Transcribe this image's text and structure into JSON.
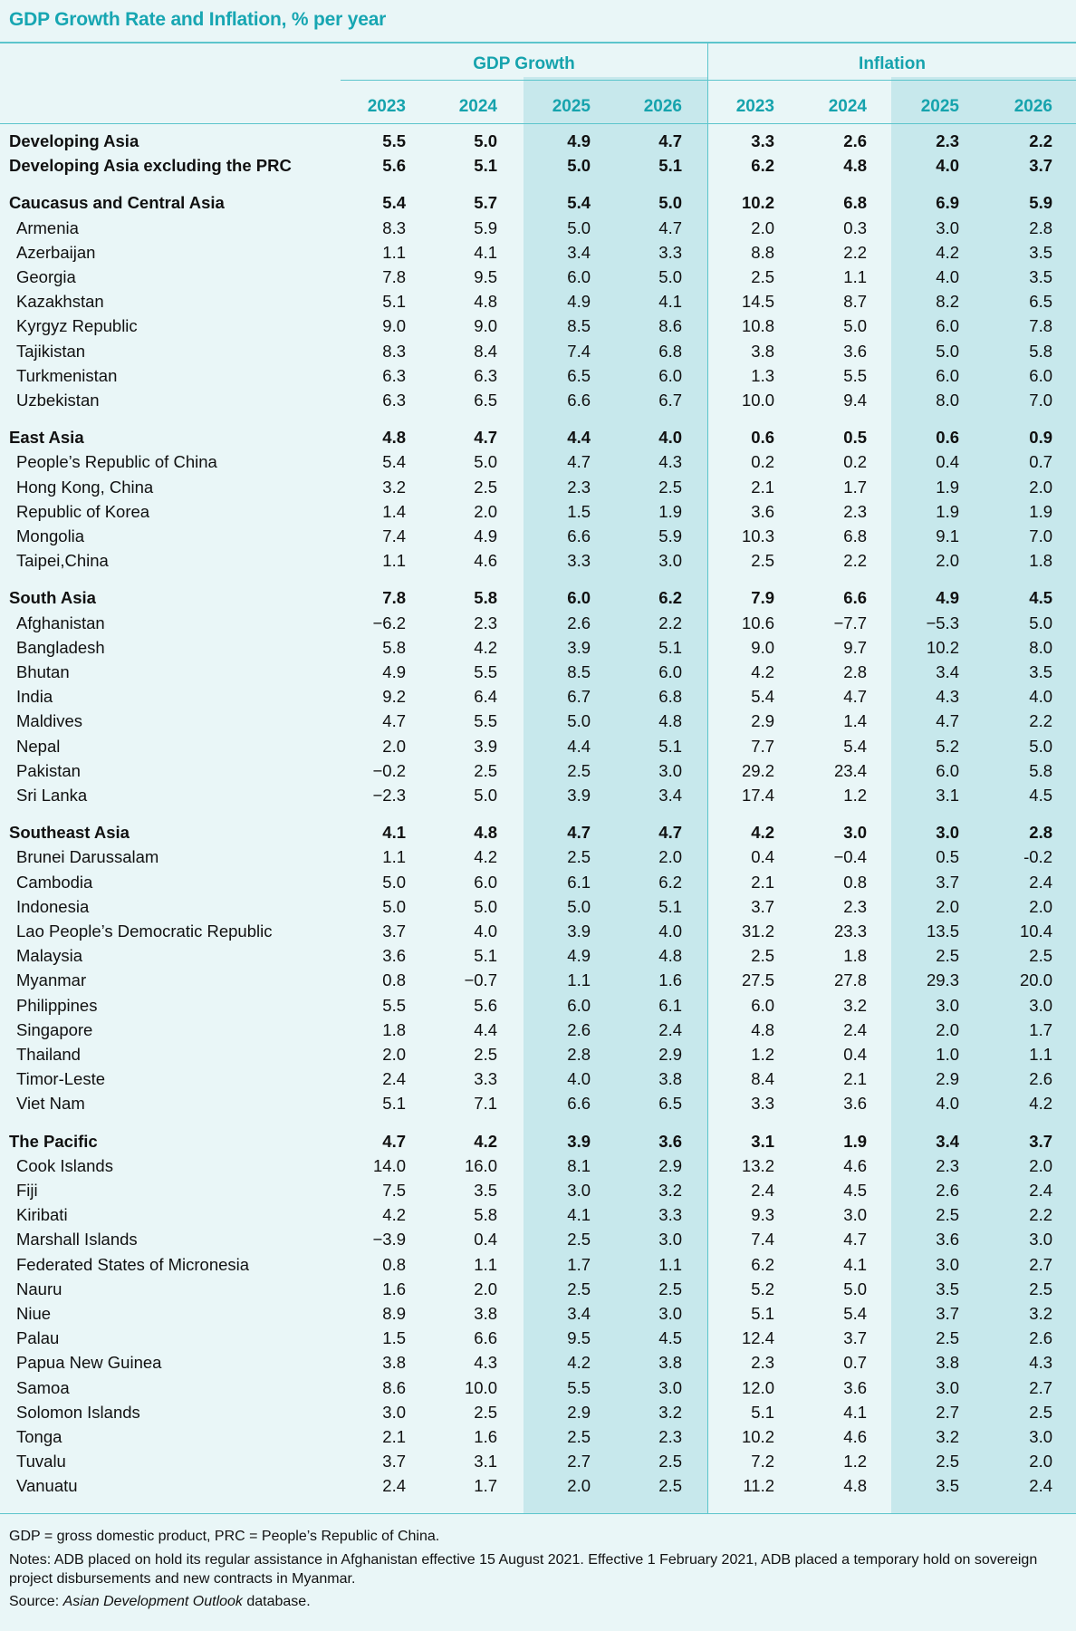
{
  "title": "GDP Growth Rate and Inflation, % per year",
  "header": {
    "gdp_label": "GDP Growth",
    "inflation_label": "Inflation",
    "years": [
      "2023",
      "2024",
      "2025",
      "2026",
      "2023",
      "2024",
      "2025",
      "2026"
    ]
  },
  "rows": [
    {
      "label": "Developing Asia",
      "bold": true,
      "values": [
        "5.5",
        "5.0",
        "4.9",
        "4.7",
        "3.3",
        "2.6",
        "2.3",
        "2.2"
      ]
    },
    {
      "label": "Developing Asia excluding the PRC",
      "bold": true,
      "values": [
        "5.6",
        "5.1",
        "5.0",
        "5.1",
        "6.2",
        "4.8",
        "4.0",
        "3.7"
      ]
    },
    {
      "label": "Caucasus and Central Asia",
      "bold": true,
      "values": [
        "5.4",
        "5.7",
        "5.4",
        "5.0",
        "10.2",
        "6.8",
        "6.9",
        "5.9"
      ]
    },
    {
      "label": "Armenia",
      "values": [
        "8.3",
        "5.9",
        "5.0",
        "4.7",
        "2.0",
        "0.3",
        "3.0",
        "2.8"
      ]
    },
    {
      "label": "Azerbaijan",
      "values": [
        "1.1",
        "4.1",
        "3.4",
        "3.3",
        "8.8",
        "2.2",
        "4.2",
        "3.5"
      ]
    },
    {
      "label": "Georgia",
      "values": [
        "7.8",
        "9.5",
        "6.0",
        "5.0",
        "2.5",
        "1.1",
        "4.0",
        "3.5"
      ]
    },
    {
      "label": "Kazakhstan",
      "values": [
        "5.1",
        "4.8",
        "4.9",
        "4.1",
        "14.5",
        "8.7",
        "8.2",
        "6.5"
      ]
    },
    {
      "label": "Kyrgyz Republic",
      "values": [
        "9.0",
        "9.0",
        "8.5",
        "8.6",
        "10.8",
        "5.0",
        "6.0",
        "7.8"
      ]
    },
    {
      "label": "Tajikistan",
      "values": [
        "8.3",
        "8.4",
        "7.4",
        "6.8",
        "3.8",
        "3.6",
        "5.0",
        "5.8"
      ]
    },
    {
      "label": "Turkmenistan",
      "values": [
        "6.3",
        "6.3",
        "6.5",
        "6.0",
        "1.3",
        "5.5",
        "6.0",
        "6.0"
      ]
    },
    {
      "label": "Uzbekistan",
      "values": [
        "6.3",
        "6.5",
        "6.6",
        "6.7",
        "10.0",
        "9.4",
        "8.0",
        "7.0"
      ]
    },
    {
      "label": "East Asia",
      "bold": true,
      "values": [
        "4.8",
        "4.7",
        "4.4",
        "4.0",
        "0.6",
        "0.5",
        "0.6",
        "0.9"
      ]
    },
    {
      "label": "People’s Republic of China",
      "values": [
        "5.4",
        "5.0",
        "4.7",
        "4.3",
        "0.2",
        "0.2",
        "0.4",
        "0.7"
      ]
    },
    {
      "label": "Hong Kong, China",
      "values": [
        "3.2",
        "2.5",
        "2.3",
        "2.5",
        "2.1",
        "1.7",
        "1.9",
        "2.0"
      ]
    },
    {
      "label": "Republic of Korea",
      "values": [
        "1.4",
        "2.0",
        "1.5",
        "1.9",
        "3.6",
        "2.3",
        "1.9",
        "1.9"
      ]
    },
    {
      "label": "Mongolia",
      "values": [
        "7.4",
        "4.9",
        "6.6",
        "5.9",
        "10.3",
        "6.8",
        "9.1",
        "7.0"
      ]
    },
    {
      "label": "Taipei,China",
      "values": [
        "1.1",
        "4.6",
        "3.3",
        "3.0",
        "2.5",
        "2.2",
        "2.0",
        "1.8"
      ]
    },
    {
      "label": "South Asia",
      "bold": true,
      "values": [
        "7.8",
        "5.8",
        "6.0",
        "6.2",
        "7.9",
        "6.6",
        "4.9",
        "4.5"
      ]
    },
    {
      "label": "Afghanistan",
      "values": [
        "−6.2",
        "2.3",
        "2.6",
        "2.2",
        "10.6",
        "−7.7",
        "−5.3",
        "5.0"
      ]
    },
    {
      "label": "Bangladesh",
      "values": [
        "5.8",
        "4.2",
        "3.9",
        "5.1",
        "9.0",
        "9.7",
        "10.2",
        "8.0"
      ]
    },
    {
      "label": "Bhutan",
      "values": [
        "4.9",
        "5.5",
        "8.5",
        "6.0",
        "4.2",
        "2.8",
        "3.4",
        "3.5"
      ]
    },
    {
      "label": "India",
      "values": [
        "9.2",
        "6.4",
        "6.7",
        "6.8",
        "5.4",
        "4.7",
        "4.3",
        "4.0"
      ]
    },
    {
      "label": "Maldives",
      "values": [
        "4.7",
        "5.5",
        "5.0",
        "4.8",
        "2.9",
        "1.4",
        "4.7",
        "2.2"
      ]
    },
    {
      "label": "Nepal",
      "values": [
        "2.0",
        "3.9",
        "4.4",
        "5.1",
        "7.7",
        "5.4",
        "5.2",
        "5.0"
      ]
    },
    {
      "label": "Pakistan",
      "values": [
        "−0.2",
        "2.5",
        "2.5",
        "3.0",
        "29.2",
        "23.4",
        "6.0",
        "5.8"
      ]
    },
    {
      "label": "Sri Lanka",
      "values": [
        "−2.3",
        "5.0",
        "3.9",
        "3.4",
        "17.4",
        "1.2",
        "3.1",
        "4.5"
      ]
    },
    {
      "label": "Southeast Asia",
      "bold": true,
      "values": [
        "4.1",
        "4.8",
        "4.7",
        "4.7",
        "4.2",
        "3.0",
        "3.0",
        "2.8"
      ]
    },
    {
      "label": "Brunei Darussalam",
      "values": [
        "1.1",
        "4.2",
        "2.5",
        "2.0",
        "0.4",
        "−0.4",
        "0.5",
        "-0.2"
      ]
    },
    {
      "label": "Cambodia",
      "values": [
        "5.0",
        "6.0",
        "6.1",
        "6.2",
        "2.1",
        "0.8",
        "3.7",
        "2.4"
      ]
    },
    {
      "label": "Indonesia",
      "values": [
        "5.0",
        "5.0",
        "5.0",
        "5.1",
        "3.7",
        "2.3",
        "2.0",
        "2.0"
      ]
    },
    {
      "label": "Lao People’s Democratic Republic",
      "values": [
        "3.7",
        "4.0",
        "3.9",
        "4.0",
        "31.2",
        "23.3",
        "13.5",
        "10.4"
      ]
    },
    {
      "label": "Malaysia",
      "values": [
        "3.6",
        "5.1",
        "4.9",
        "4.8",
        "2.5",
        "1.8",
        "2.5",
        "2.5"
      ]
    },
    {
      "label": "Myanmar",
      "values": [
        "0.8",
        "−0.7",
        "1.1",
        "1.6",
        "27.5",
        "27.8",
        "29.3",
        "20.0"
      ]
    },
    {
      "label": "Philippines",
      "values": [
        "5.5",
        "5.6",
        "6.0",
        "6.1",
        "6.0",
        "3.2",
        "3.0",
        "3.0"
      ]
    },
    {
      "label": "Singapore",
      "values": [
        "1.8",
        "4.4",
        "2.6",
        "2.4",
        "4.8",
        "2.4",
        "2.0",
        "1.7"
      ]
    },
    {
      "label": "Thailand",
      "values": [
        "2.0",
        "2.5",
        "2.8",
        "2.9",
        "1.2",
        "0.4",
        "1.0",
        "1.1"
      ]
    },
    {
      "label": "Timor-Leste",
      "values": [
        "2.4",
        "3.3",
        "4.0",
        "3.8",
        "8.4",
        "2.1",
        "2.9",
        "2.6"
      ]
    },
    {
      "label": "Viet Nam",
      "values": [
        "5.1",
        "7.1",
        "6.6",
        "6.5",
        "3.3",
        "3.6",
        "4.0",
        "4.2"
      ]
    },
    {
      "label": "The Pacific",
      "bold": true,
      "values": [
        "4.7",
        "4.2",
        "3.9",
        "3.6",
        "3.1",
        "1.9",
        "3.4",
        "3.7"
      ]
    },
    {
      "label": "Cook Islands",
      "values": [
        "14.0",
        "16.0",
        "8.1",
        "2.9",
        "13.2",
        "4.6",
        "2.3",
        "2.0"
      ]
    },
    {
      "label": "Fiji",
      "values": [
        "7.5",
        "3.5",
        "3.0",
        "3.2",
        "2.4",
        "4.5",
        "2.6",
        "2.4"
      ]
    },
    {
      "label": "Kiribati",
      "values": [
        "4.2",
        "5.8",
        "4.1",
        "3.3",
        "9.3",
        "3.0",
        "2.5",
        "2.2"
      ]
    },
    {
      "label": "Marshall Islands",
      "values": [
        "−3.9",
        "0.4",
        "2.5",
        "3.0",
        "7.4",
        "4.7",
        "3.6",
        "3.0"
      ]
    },
    {
      "label": "Federated States of Micronesia",
      "values": [
        "0.8",
        "1.1",
        "1.7",
        "1.1",
        "6.2",
        "4.1",
        "3.0",
        "2.7"
      ]
    },
    {
      "label": "Nauru",
      "values": [
        "1.6",
        "2.0",
        "2.5",
        "2.5",
        "5.2",
        "5.0",
        "3.5",
        "2.5"
      ]
    },
    {
      "label": "Niue",
      "values": [
        "8.9",
        "3.8",
        "3.4",
        "3.0",
        "5.1",
        "5.4",
        "3.7",
        "3.2"
      ]
    },
    {
      "label": "Palau",
      "values": [
        "1.5",
        "6.6",
        "9.5",
        "4.5",
        "12.4",
        "3.7",
        "2.5",
        "2.6"
      ]
    },
    {
      "label": "Papua New Guinea",
      "values": [
        "3.8",
        "4.3",
        "4.2",
        "3.8",
        "2.3",
        "0.7",
        "3.8",
        "4.3"
      ]
    },
    {
      "label": "Samoa",
      "values": [
        "8.6",
        "10.0",
        "5.5",
        "3.0",
        "12.0",
        "3.6",
        "3.0",
        "2.7"
      ]
    },
    {
      "label": "Solomon Islands",
      "values": [
        "3.0",
        "2.5",
        "2.9",
        "3.2",
        "5.1",
        "4.1",
        "2.7",
        "2.5"
      ]
    },
    {
      "label": "Tonga",
      "values": [
        "2.1",
        "1.6",
        "2.5",
        "2.3",
        "10.2",
        "4.6",
        "3.2",
        "3.0"
      ]
    },
    {
      "label": "Tuvalu",
      "values": [
        "3.7",
        "3.1",
        "2.7",
        "2.5",
        "7.2",
        "1.2",
        "2.5",
        "2.0"
      ]
    },
    {
      "label": "Vanuatu",
      "values": [
        "2.4",
        "1.7",
        "2.0",
        "2.5",
        "11.2",
        "4.8",
        "3.5",
        "2.4"
      ]
    }
  ],
  "footer": {
    "abbrev": "GDP = gross domestic product, PRC = People’s Republic of China.",
    "notes": "Notes: ADB placed on hold its regular assistance in Afghanistan effective 15 August 2021. Effective 1 February 2021, ADB placed a temporary hold on sovereign project disbursements and new contracts in Myanmar.",
    "source_prefix": "Source: ",
    "source_name": "Asian Development Outlook",
    "source_suffix": " database."
  }
}
